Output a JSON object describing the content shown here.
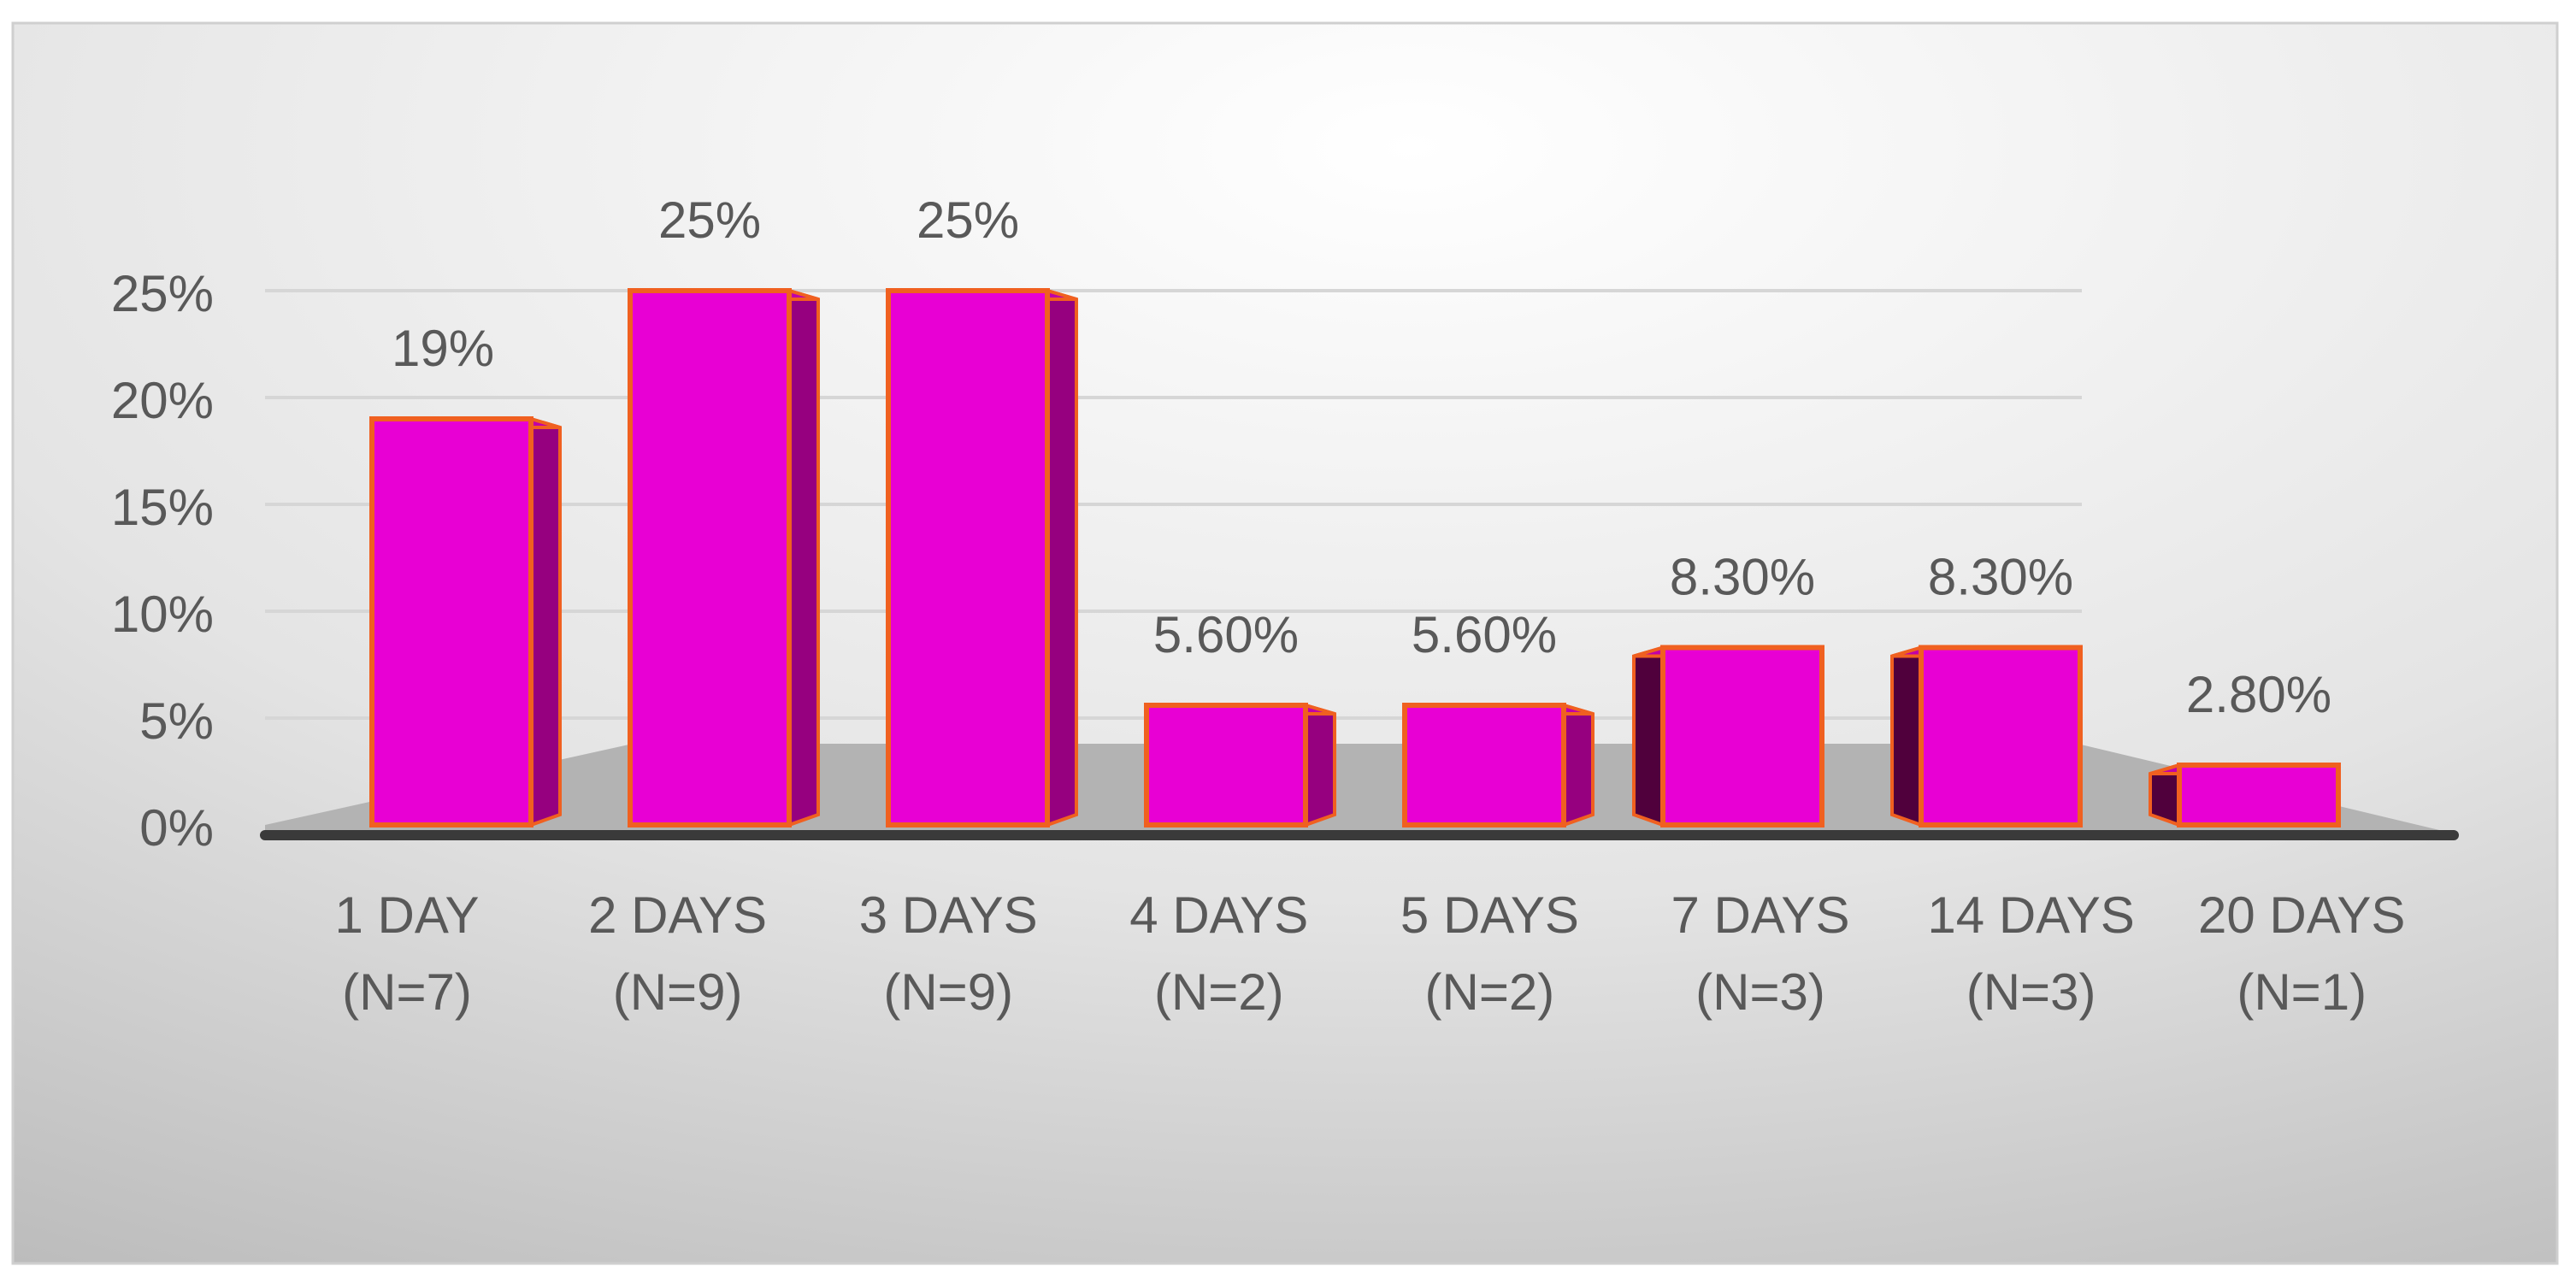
{
  "chart_data": {
    "type": "bar",
    "categories": [
      [
        "1 DAY",
        "(N=7)"
      ],
      [
        "2 DAYS",
        "(N=9)"
      ],
      [
        "3 DAYS",
        "(N=9)"
      ],
      [
        "4 DAYS",
        "(N=2)"
      ],
      [
        "5 DAYS",
        "(N=2)"
      ],
      [
        "7 DAYS",
        "(N=3)"
      ],
      [
        "14 DAYS",
        "(N=3)"
      ],
      [
        "20 DAYS",
        "(N=1)"
      ]
    ],
    "values": [
      19,
      25,
      25,
      5.6,
      5.6,
      8.3,
      8.3,
      2.8
    ],
    "value_labels": [
      "19%",
      "25%",
      "25%",
      "5.60%",
      "5.60%",
      "8.30%",
      "8.30%",
      "2.80%"
    ],
    "color": "#e800d4",
    "ylim": [
      0,
      25
    ],
    "yticks": [
      {
        "value": 0,
        "label": "0%"
      },
      {
        "value": 5,
        "label": "5%"
      },
      {
        "value": 10,
        "label": "10%"
      },
      {
        "value": 15,
        "label": "15%"
      },
      {
        "value": 20,
        "label": "20%"
      },
      {
        "value": 25,
        "label": "25%"
      }
    ],
    "grid": true
  }
}
